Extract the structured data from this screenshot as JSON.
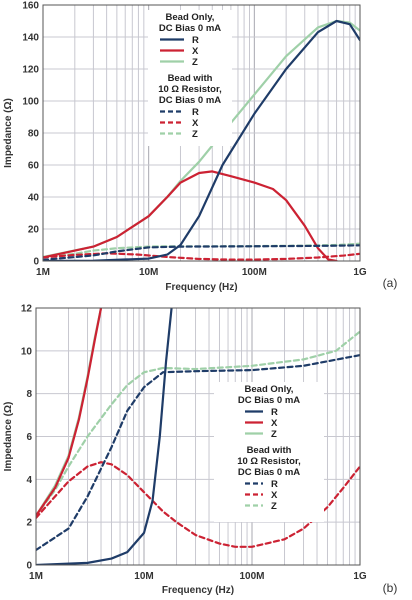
{
  "chart_data": [
    {
      "type": "line",
      "panel_label": "(a)",
      "xlabel": "Frequency (Hz)",
      "ylabel": "Impedance (Ω)",
      "xscale": "log",
      "xlim": [
        1000000,
        1000000000
      ],
      "ylim": [
        0,
        160
      ],
      "xticks": [
        {
          "value": 1000000,
          "label": "1M"
        },
        {
          "value": 10000000,
          "label": "10M"
        },
        {
          "value": 100000000,
          "label": "100M"
        },
        {
          "value": 1000000000,
          "label": "1G"
        }
      ],
      "yticks": [
        0,
        20,
        40,
        60,
        80,
        100,
        120,
        140,
        160
      ],
      "grid": true,
      "legend_placement": "top-center",
      "legend_groups": [
        {
          "title": [
            "Bead Only,",
            "DC Bias 0 mA"
          ],
          "entries": [
            "R",
            "X",
            "Z"
          ]
        },
        {
          "title": [
            "Bead with",
            "10 Ω Resistor,",
            "DC Bias 0 mA"
          ],
          "entries": [
            "R",
            "X",
            "Z"
          ]
        }
      ],
      "series": [
        {
          "name": "R",
          "group": 0,
          "color": "#1f3c68",
          "dash": "solid",
          "x": [
            1000000,
            3000000,
            10000000,
            15000000,
            20000000,
            30000000,
            50000000,
            100000000,
            200000000,
            400000000,
            600000000,
            800000000,
            1000000000
          ],
          "y": [
            0,
            0.2,
            1.5,
            4,
            10,
            28,
            60,
            92,
            120,
            143,
            150,
            148,
            138
          ]
        },
        {
          "name": "X",
          "group": 0,
          "color": "#cc2233",
          "dash": "solid",
          "x": [
            1000000,
            3000000,
            5000000,
            10000000,
            15000000,
            20000000,
            30000000,
            40000000,
            60000000,
            100000000,
            150000000,
            200000000,
            300000000,
            400000000,
            500000000,
            600000000
          ],
          "y": [
            2.2,
            9,
            15,
            28,
            40,
            49,
            55,
            56,
            53,
            49,
            45,
            38,
            22,
            8,
            1,
            0
          ]
        },
        {
          "name": "Z",
          "group": 0,
          "color": "#9fd0a8",
          "dash": "solid",
          "x": [
            1000000,
            3000000,
            5000000,
            10000000,
            15000000,
            20000000,
            30000000,
            50000000,
            100000000,
            200000000,
            400000000,
            600000000,
            800000000,
            1000000000
          ],
          "y": [
            2.5,
            9,
            15,
            28,
            40,
            50,
            62,
            80,
            104,
            128,
            146,
            150,
            149,
            144
          ]
        },
        {
          "name": "R",
          "group": 1,
          "color": "#1f3c68",
          "dash": "dashed",
          "x": [
            1000000,
            3000000,
            5000000,
            10000000,
            20000000,
            100000000,
            500000000,
            1000000000
          ],
          "y": [
            0.7,
            3.5,
            6,
            8.5,
            9,
            9.2,
            9.5,
            9.8
          ]
        },
        {
          "name": "X",
          "group": 1,
          "color": "#cc2233",
          "dash": "dashed",
          "x": [
            1000000,
            2000000,
            4000000,
            8000000,
            15000000,
            30000000,
            60000000,
            100000000,
            200000000,
            400000000,
            700000000,
            1000000000
          ],
          "y": [
            2.2,
            3.8,
            4.8,
            4,
            2.5,
            1.3,
            0.85,
            0.9,
            1.3,
            2.2,
            3.4,
            4.5
          ]
        },
        {
          "name": "Z",
          "group": 1,
          "color": "#9fd0a8",
          "dash": "dashed",
          "x": [
            1000000,
            2000000,
            3000000,
            5000000,
            10000000,
            15000000,
            30000000,
            100000000,
            300000000,
            600000000,
            1000000000
          ],
          "y": [
            2.4,
            4.5,
            6.5,
            8,
            9,
            9.2,
            9.1,
            9.3,
            9.6,
            10,
            10.8
          ]
        }
      ]
    },
    {
      "type": "line",
      "panel_label": "(b)",
      "xlabel": "Frequency (Hz)",
      "ylabel": "Impedance (Ω)",
      "xscale": "log",
      "xlim": [
        1000000,
        1000000000
      ],
      "ylim": [
        0,
        12
      ],
      "xticks": [
        {
          "value": 1000000,
          "label": "1M"
        },
        {
          "value": 10000000,
          "label": "10M"
        },
        {
          "value": 100000000,
          "label": "100M"
        },
        {
          "value": 1000000000,
          "label": "1G"
        }
      ],
      "yticks": [
        0,
        2,
        4,
        6,
        8,
        10,
        12
      ],
      "grid": true,
      "legend_placement": "center-right",
      "legend_groups": [
        {
          "title": [
            "Bead Only,",
            "DC Bias 0 mA"
          ],
          "entries": [
            "R",
            "X",
            "Z"
          ]
        },
        {
          "title": [
            "Bead with",
            "10 Ω Resistor,",
            "DC Bias 0 mA"
          ],
          "entries": [
            "R",
            "X",
            "Z"
          ]
        }
      ],
      "series": [
        {
          "name": "R",
          "group": 0,
          "color": "#1f3c68",
          "dash": "solid",
          "x": [
            1000000,
            3000000,
            5000000,
            7000000,
            10000000,
            12000000,
            14000000,
            16000000,
            18000000
          ],
          "y": [
            0,
            0.1,
            0.3,
            0.6,
            1.5,
            3,
            6,
            9.5,
            12
          ]
        },
        {
          "name": "X",
          "group": 0,
          "color": "#cc2233",
          "dash": "solid",
          "x": [
            1000000,
            1500000,
            2000000,
            2500000,
            3000000,
            3500000,
            4000000
          ],
          "y": [
            2.3,
            3.6,
            5,
            6.8,
            8.7,
            10.5,
            12
          ]
        },
        {
          "name": "Z",
          "group": 0,
          "color": "#9fd0a8",
          "dash": "solid",
          "x": [
            1000000,
            1500000,
            2000000,
            2500000,
            3000000,
            3500000,
            4000000
          ],
          "y": [
            2.3,
            3.7,
            5.1,
            6.9,
            8.8,
            10.6,
            12
          ]
        },
        {
          "name": "R",
          "group": 1,
          "color": "#1f3c68",
          "dash": "dashed",
          "x": [
            1000000,
            2000000,
            3000000,
            5000000,
            7000000,
            10000000,
            15000000,
            30000000,
            100000000,
            300000000,
            1000000000
          ],
          "y": [
            0.7,
            1.7,
            3.2,
            5.5,
            7.2,
            8.3,
            9,
            9.05,
            9.1,
            9.3,
            9.8
          ]
        },
        {
          "name": "X",
          "group": 1,
          "color": "#cc2233",
          "dash": "dashed",
          "x": [
            1000000,
            1500000,
            2000000,
            3000000,
            4000000,
            5000000,
            7000000,
            10000000,
            15000000,
            20000000,
            30000000,
            50000000,
            70000000,
            100000000,
            200000000,
            300000000,
            500000000,
            700000000,
            1000000000
          ],
          "y": [
            2.2,
            3.2,
            3.9,
            4.6,
            4.8,
            4.7,
            4.2,
            3.4,
            2.5,
            2,
            1.4,
            1,
            0.85,
            0.85,
            1.2,
            1.7,
            2.7,
            3.6,
            4.6
          ]
        },
        {
          "name": "Z",
          "group": 1,
          "color": "#9fd0a8",
          "dash": "dashed",
          "x": [
            1000000,
            1500000,
            2000000,
            3000000,
            5000000,
            7000000,
            10000000,
            15000000,
            30000000,
            100000000,
            300000000,
            600000000,
            1000000000
          ],
          "y": [
            2.3,
            3.5,
            4.6,
            6,
            7.5,
            8.4,
            9,
            9.2,
            9.15,
            9.3,
            9.6,
            10,
            10.9
          ]
        }
      ]
    }
  ]
}
